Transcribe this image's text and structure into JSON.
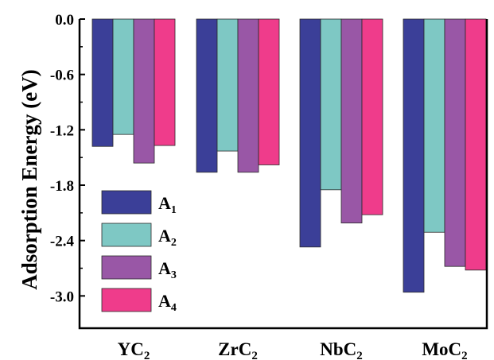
{
  "chart_data": {
    "type": "bar",
    "ylabel": "Adsorption Energy (eV)",
    "ylim": [
      -3.35,
      0.0
    ],
    "yticks": [
      0.0,
      -0.6,
      -1.2,
      -1.8,
      -2.4,
      -3.0
    ],
    "ytick_labels": [
      "0.0",
      "-0.6",
      "-1.2",
      "-1.8",
      "-2.4",
      "-3.0"
    ],
    "categories": [
      {
        "main": "YC",
        "sub": "2"
      },
      {
        "main": "ZrC",
        "sub": "2"
      },
      {
        "main": "NbC",
        "sub": "2"
      },
      {
        "main": "MoC",
        "sub": "2"
      }
    ],
    "series": [
      {
        "name": {
          "main": "A",
          "sub": "1"
        },
        "color": "#3b3f98",
        "values": [
          -1.38,
          -1.66,
          -2.47,
          -2.96
        ]
      },
      {
        "name": {
          "main": "A",
          "sub": "2"
        },
        "color": "#7ec8c4",
        "values": [
          -1.25,
          -1.43,
          -1.85,
          -2.31
        ]
      },
      {
        "name": {
          "main": "A",
          "sub": "3"
        },
        "color": "#9957a6",
        "values": [
          -1.56,
          -1.66,
          -2.21,
          -2.68
        ]
      },
      {
        "name": {
          "main": "A",
          "sub": "4"
        },
        "color": "#ef3c8b",
        "values": [
          -1.37,
          -1.58,
          -2.12,
          -2.72
        ]
      }
    ],
    "legend_position": "bottom-left",
    "grid": false
  }
}
